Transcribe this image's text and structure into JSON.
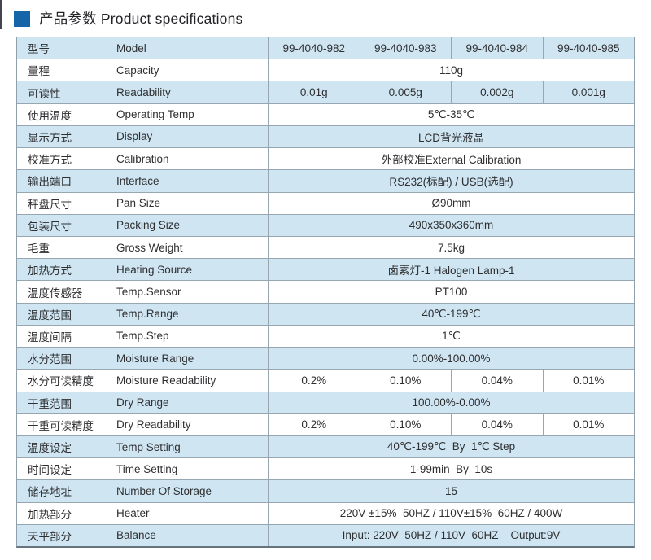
{
  "page": {
    "title": "产品参数 Product specifications",
    "accent_color": "#1565a8",
    "row_alt_color": "#cfe5f2",
    "border_color": "#97a7b1"
  },
  "table": {
    "rows": [
      {
        "zh": "型号",
        "en": "Model",
        "values": [
          "99-4040-982",
          "99-4040-983",
          "99-4040-984",
          "99-4040-985"
        ]
      },
      {
        "zh": "量程",
        "en": "Capacity",
        "span": "110g"
      },
      {
        "zh": "可读性",
        "en": "Readability",
        "values": [
          "0.01g",
          "0.005g",
          "0.002g",
          "0.001g"
        ]
      },
      {
        "zh": "使用温度",
        "en": "Operating Temp",
        "span": "5℃-35℃"
      },
      {
        "zh": "显示方式",
        "en": "Display",
        "span": "LCD背光液晶"
      },
      {
        "zh": "校准方式",
        "en": "Calibration",
        "span": "外部校准External Calibration"
      },
      {
        "zh": "输出端口",
        "en": "Interface",
        "span": "RS232(标配) / USB(选配)"
      },
      {
        "zh": "秤盘尺寸",
        "en": "Pan Size",
        "span": "Ø90mm"
      },
      {
        "zh": "包装尺寸",
        "en": "Packing Size",
        "span": "490x350x360mm"
      },
      {
        "zh": "毛重",
        "en": "Gross Weight",
        "span": "7.5kg"
      },
      {
        "zh": "加热方式",
        "en": "Heating Source",
        "span": "卤素灯-1 Halogen Lamp-1"
      },
      {
        "zh": "温度传感器",
        "en": "Temp.Sensor",
        "span": "PT100"
      },
      {
        "zh": "温度范围",
        "en": "Temp.Range",
        "span": "40℃-199℃"
      },
      {
        "zh": "温度间隔",
        "en": "Temp.Step",
        "span": "1℃"
      },
      {
        "zh": "水分范围",
        "en": "Moisture Range",
        "span": "0.00%-100.00%"
      },
      {
        "zh": "水分可读精度",
        "en": "Moisture Readability",
        "values": [
          "0.2%",
          "0.10%",
          "0.04%",
          "0.01%"
        ]
      },
      {
        "zh": "干重范围",
        "en": "Dry Range",
        "span": "100.00%-0.00%"
      },
      {
        "zh": "干重可读精度",
        "en": "Dry Readability",
        "values": [
          "0.2%",
          "0.10%",
          "0.04%",
          "0.01%"
        ]
      },
      {
        "zh": "温度设定",
        "en": "Temp Setting",
        "span": "40℃-199℃  By  1℃ Step"
      },
      {
        "zh": "时间设定",
        "en": "Time Setting",
        "span": "1-99min  By  10s"
      },
      {
        "zh": "储存地址",
        "en": "Number Of Storage",
        "span": "15"
      },
      {
        "zh": "加热部分",
        "en": "Heater",
        "span": "220V ±15%  50HZ / 110V±15%  60HZ / 400W"
      },
      {
        "zh": "天平部分",
        "en": "Balance",
        "span": "Input: 220V  50HZ / 110V  60HZ    Output:9V"
      }
    ]
  }
}
